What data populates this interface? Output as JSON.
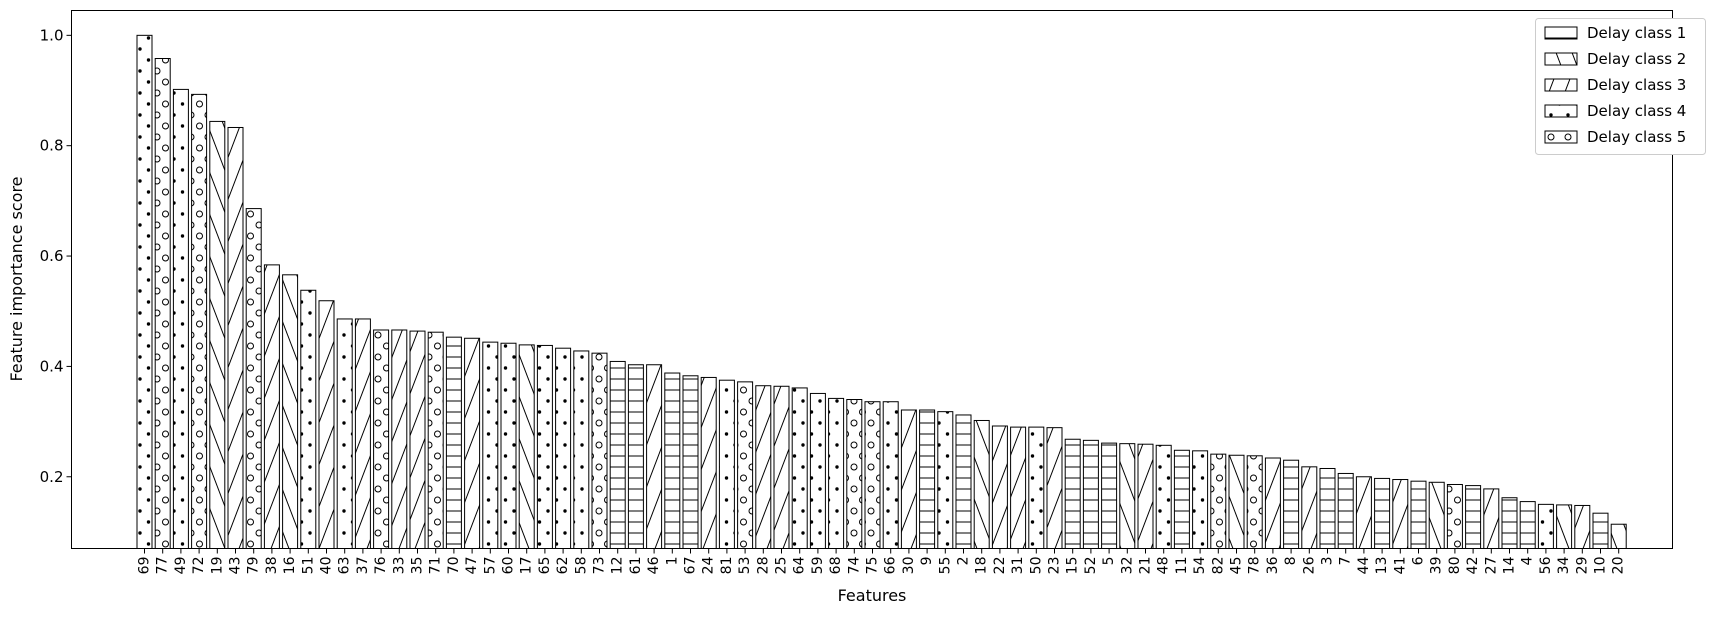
{
  "chart_data": {
    "type": "bar",
    "xlabel": "Features",
    "ylabel": "Feature importance score",
    "ylim": [
      0.07,
      1.045
    ],
    "yticks": [
      0.2,
      0.4,
      0.6,
      0.8,
      1.0
    ],
    "ytick_labels": [
      "0.2",
      "0.4",
      "0.6",
      "0.8",
      "1.0"
    ],
    "grid": false,
    "legend_position": "top-right",
    "legend": [
      {
        "label": "Delay class 1",
        "pattern": "horizontal"
      },
      {
        "label": "Delay class 2",
        "pattern": "backslash"
      },
      {
        "label": "Delay class 3",
        "pattern": "slash"
      },
      {
        "label": "Delay class 4",
        "pattern": "dots"
      },
      {
        "label": "Delay class 5",
        "pattern": "circles"
      }
    ],
    "categories": [
      "69",
      "77",
      "49",
      "72",
      "19",
      "43",
      "79",
      "38",
      "16",
      "51",
      "40",
      "63",
      "37",
      "76",
      "33",
      "35",
      "71",
      "70",
      "47",
      "57",
      "60",
      "17",
      "65",
      "62",
      "58",
      "73",
      "12",
      "61",
      "46",
      "1",
      "67",
      "24",
      "81",
      "53",
      "28",
      "25",
      "64",
      "59",
      "68",
      "74",
      "75",
      "66",
      "30",
      "9",
      "55",
      "2",
      "18",
      "22",
      "31",
      "50",
      "23",
      "15",
      "52",
      "5",
      "32",
      "21",
      "48",
      "11",
      "54",
      "82",
      "45",
      "78",
      "36",
      "8",
      "26",
      "3",
      "7",
      "44",
      "13",
      "41",
      "6",
      "39",
      "80",
      "42",
      "27",
      "14",
      "4",
      "56",
      "34",
      "29",
      "10",
      "20"
    ],
    "values": [
      1.0,
      0.958,
      0.902,
      0.893,
      0.844,
      0.833,
      0.686,
      0.584,
      0.566,
      0.538,
      0.519,
      0.486,
      0.486,
      0.466,
      0.466,
      0.464,
      0.462,
      0.453,
      0.451,
      0.444,
      0.442,
      0.439,
      0.438,
      0.433,
      0.428,
      0.424,
      0.409,
      0.403,
      0.403,
      0.388,
      0.383,
      0.38,
      0.375,
      0.372,
      0.365,
      0.364,
      0.361,
      0.351,
      0.342,
      0.34,
      0.336,
      0.336,
      0.321,
      0.321,
      0.318,
      0.312,
      0.302,
      0.292,
      0.29,
      0.29,
      0.289,
      0.268,
      0.266,
      0.261,
      0.26,
      0.259,
      0.257,
      0.248,
      0.247,
      0.241,
      0.239,
      0.238,
      0.234,
      0.23,
      0.218,
      0.215,
      0.206,
      0.2,
      0.197,
      0.195,
      0.192,
      0.19,
      0.186,
      0.184,
      0.178,
      0.162,
      0.155,
      0.15,
      0.149,
      0.148,
      0.134,
      0.114
    ],
    "classes": [
      4,
      5,
      4,
      5,
      2,
      3,
      5,
      3,
      2,
      4,
      3,
      4,
      3,
      5,
      3,
      3,
      5,
      1,
      3,
      4,
      4,
      2,
      4,
      4,
      4,
      5,
      1,
      1,
      3,
      1,
      1,
      3,
      4,
      5,
      3,
      3,
      4,
      4,
      4,
      5,
      5,
      4,
      3,
      1,
      4,
      1,
      2,
      3,
      3,
      4,
      3,
      1,
      1,
      1,
      2,
      3,
      4,
      1,
      4,
      5,
      2,
      5,
      3,
      1,
      3,
      1,
      1,
      3,
      1,
      3,
      1,
      2,
      5,
      1,
      3,
      1,
      1,
      4,
      2,
      3,
      1,
      2
    ]
  }
}
